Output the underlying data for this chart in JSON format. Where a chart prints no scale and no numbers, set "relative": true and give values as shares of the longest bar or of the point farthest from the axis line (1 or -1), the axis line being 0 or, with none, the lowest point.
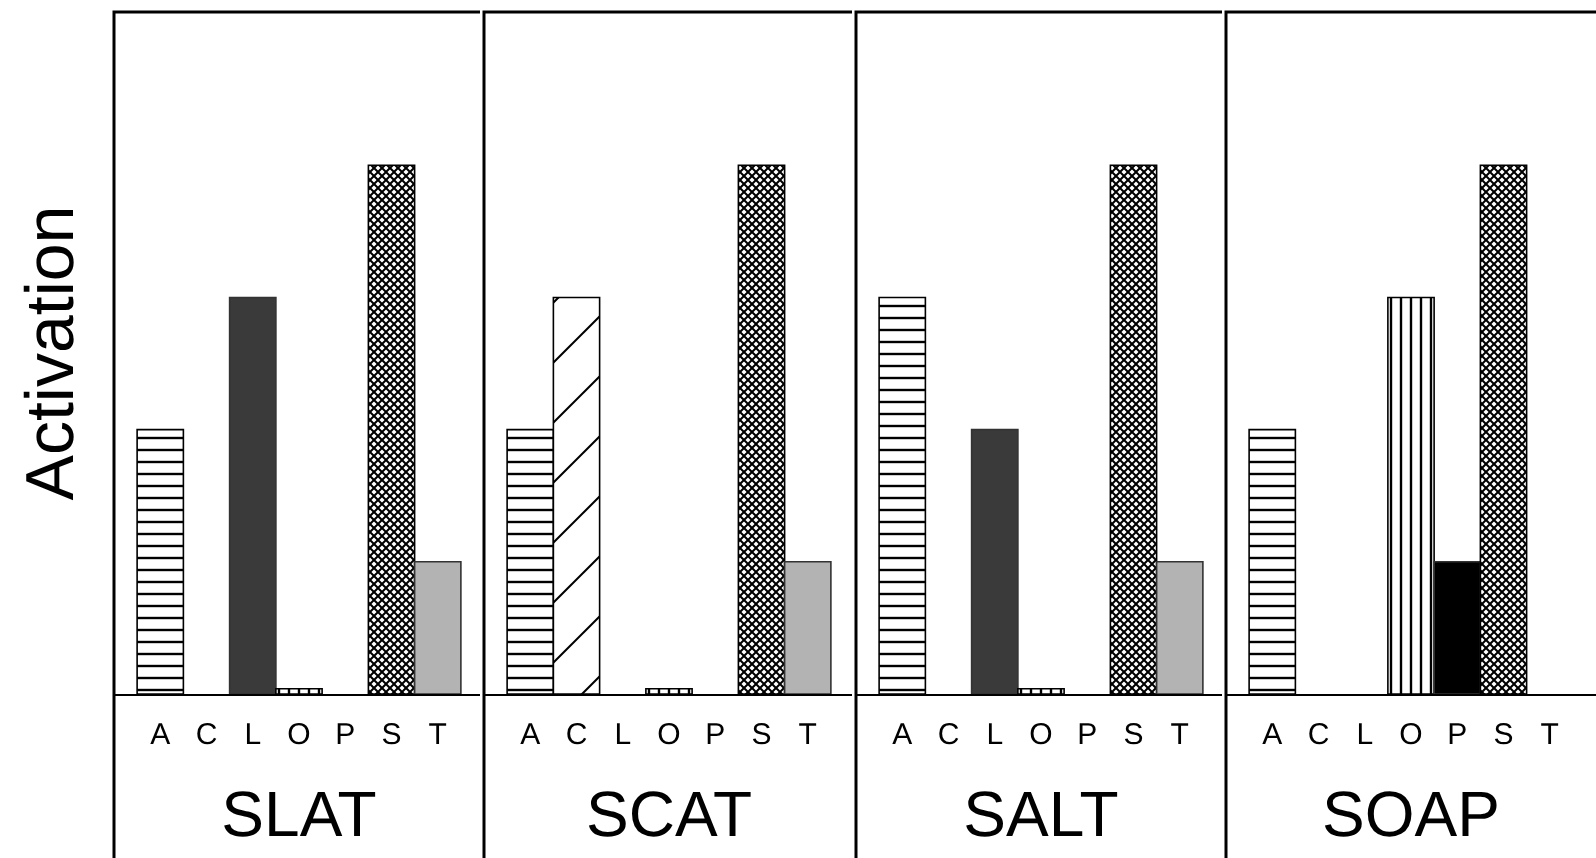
{
  "chart_data": [
    {
      "type": "bar",
      "relative": true,
      "ylabel": "Activation",
      "xlabel": "SLAT",
      "categories": [
        "A",
        "C",
        "L",
        "O",
        "P",
        "S",
        "T"
      ],
      "values": [
        0.5,
        0,
        0.75,
        0.01,
        0,
        1,
        0.25
      ],
      "colors": [
        "#000000",
        "#000000",
        "#3a3a3a",
        "#000000",
        "#000000",
        "#000000",
        "#b3b3b3"
      ]
    },
    {
      "type": "bar",
      "relative": true,
      "xlabel": "SCAT",
      "categories": [
        "A",
        "C",
        "L",
        "O",
        "P",
        "S",
        "T"
      ],
      "values": [
        0.5,
        0.75,
        0,
        0.01,
        0,
        1,
        0.25
      ],
      "colors": [
        "#000000",
        "#000000",
        "#3a3a3a",
        "#000000",
        "#000000",
        "#000000",
        "#b3b3b3"
      ]
    },
    {
      "type": "bar",
      "relative": true,
      "xlabel": "SALT",
      "categories": [
        "A",
        "C",
        "L",
        "O",
        "P",
        "S",
        "T"
      ],
      "values": [
        0.75,
        0,
        0.5,
        0.01,
        0,
        1,
        0.25
      ],
      "colors": [
        "#000000",
        "#000000",
        "#3a3a3a",
        "#000000",
        "#000000",
        "#000000",
        "#b3b3b3"
      ]
    },
    {
      "type": "bar",
      "relative": true,
      "xlabel": "SOAP",
      "categories": [
        "A",
        "C",
        "L",
        "O",
        "P",
        "S",
        "T"
      ],
      "values": [
        0.5,
        0,
        0,
        0.75,
        0.25,
        1,
        0
      ],
      "colors": [
        "#000000",
        "#000000",
        "#3a3a3a",
        "#000000",
        "#000000",
        "#000000",
        "#b3b3b3"
      ]
    }
  ]
}
